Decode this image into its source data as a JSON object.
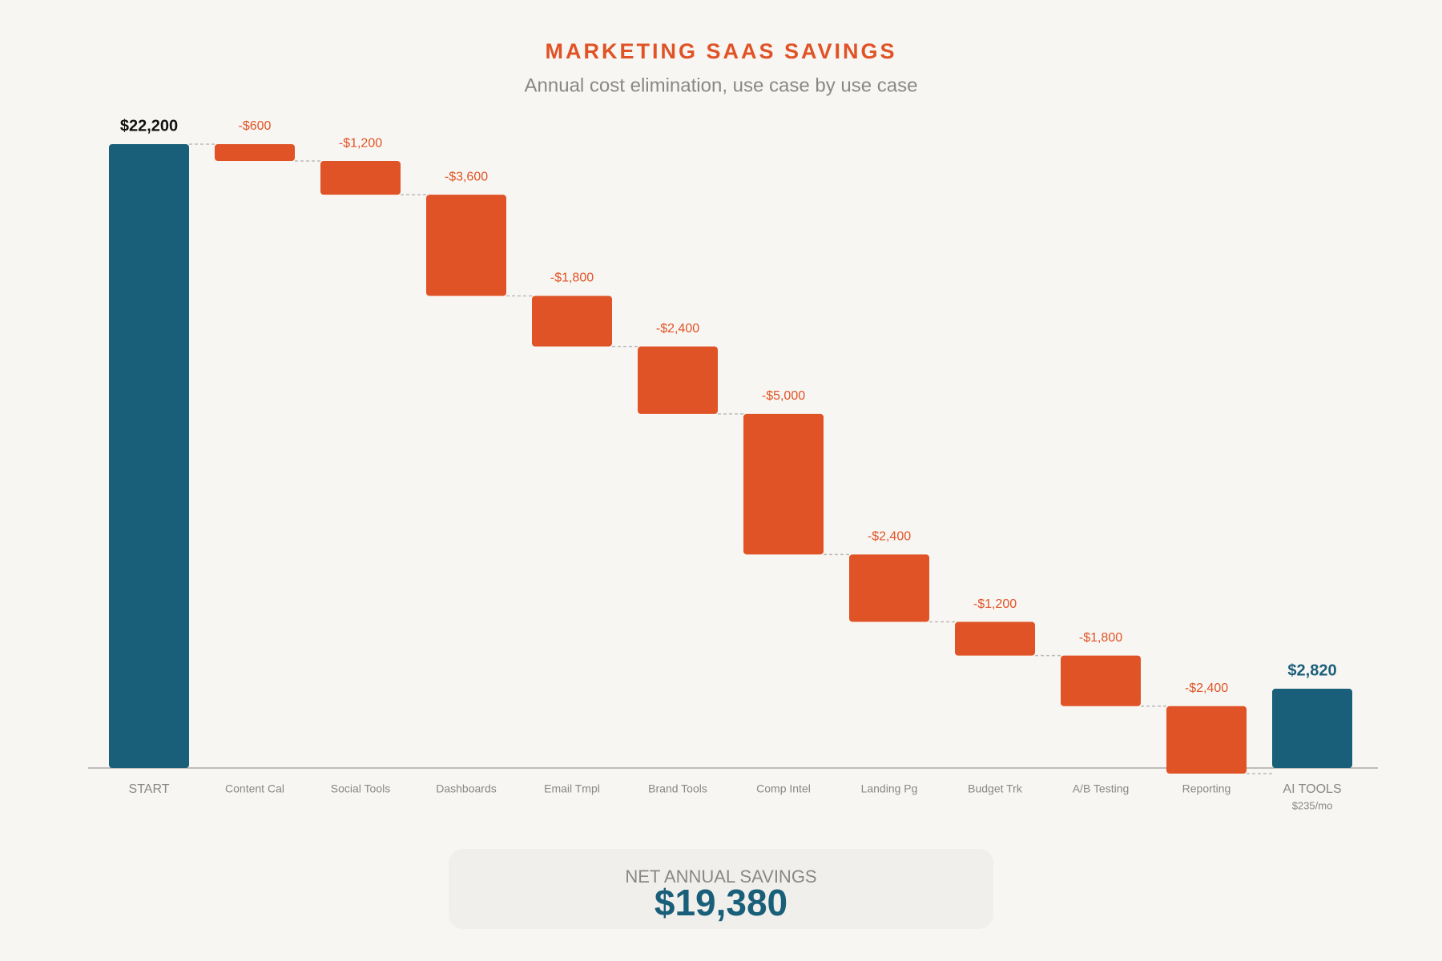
{
  "chart_data": {
    "type": "waterfall",
    "title": "MARKETING SAAS SAVINGS",
    "subtitle": "Annual cost elimination, use case by use case",
    "categories": [
      "START",
      "Content Cal",
      "Social Tools",
      "Dashboards",
      "Email Tmpl",
      "Brand Tools",
      "Comp Intel",
      "Landing Pg",
      "Budget Trk",
      "A/B Testing",
      "Reporting",
      "AI TOOLS"
    ],
    "category_notes": [
      null,
      null,
      null,
      null,
      null,
      null,
      null,
      null,
      null,
      null,
      null,
      "$235/mo"
    ],
    "measure": [
      "absolute",
      "relative",
      "relative",
      "relative",
      "relative",
      "relative",
      "relative",
      "relative",
      "relative",
      "relative",
      "relative",
      "absolute"
    ],
    "values": [
      22200,
      -600,
      -1200,
      -3600,
      -1800,
      -2400,
      -5000,
      -2400,
      -1200,
      -1800,
      -2400,
      2820
    ],
    "value_labels": [
      "$22,200",
      "-$600",
      "-$1,200",
      "-$3,600",
      "-$1,800",
      "-$2,400",
      "-$5,000",
      "-$2,400",
      "-$1,200",
      "-$1,800",
      "-$2,400",
      "$2,820"
    ],
    "total_color": "#1a5f7a",
    "decrease_color": "#e05326"
  },
  "summary": {
    "label": "NET ANNUAL SAVINGS",
    "value": "$19,380"
  }
}
